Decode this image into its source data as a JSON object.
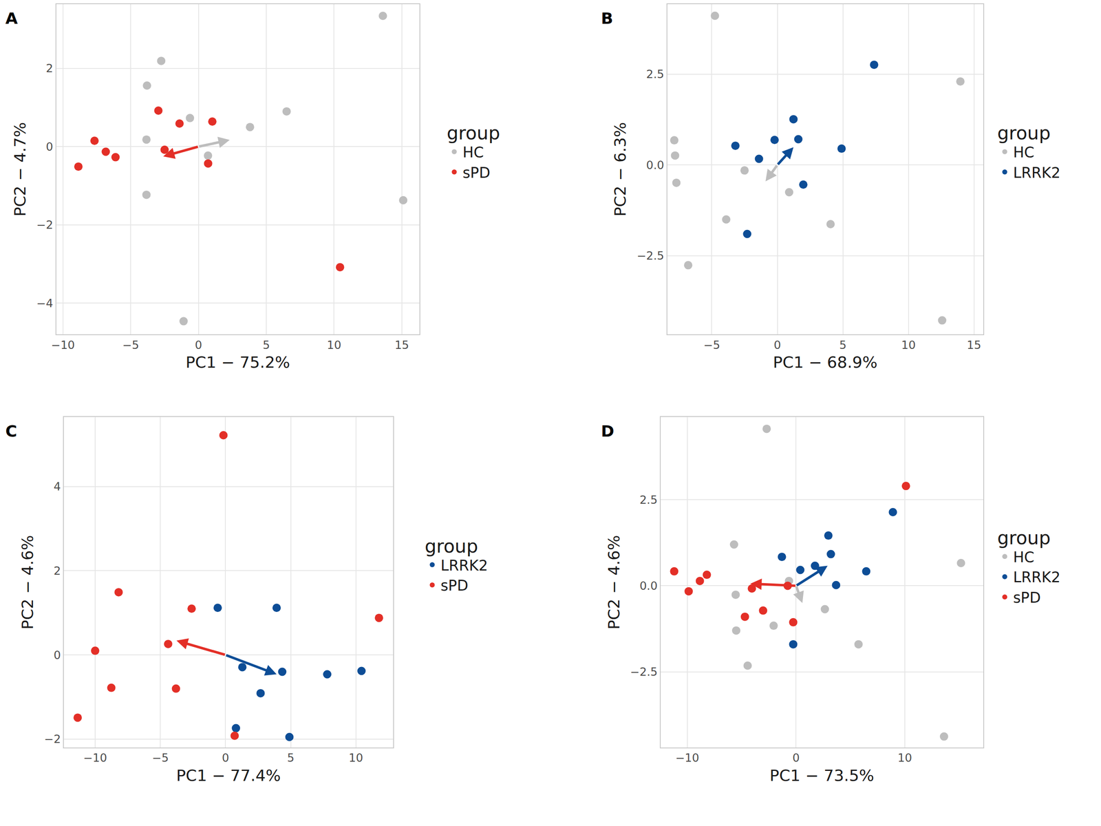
{
  "chart_data": [
    {
      "type": "scatter",
      "title": "A",
      "x_label": "PC1 − 75.2%",
      "y_label": "PC2 − 4.7%",
      "xlim": [
        -10.5,
        16.3
      ],
      "ylim": [
        -4.8,
        3.64
      ],
      "xticks": [
        -10,
        -5,
        0,
        5,
        10,
        15
      ],
      "yticks": [
        -4,
        -2,
        0,
        2
      ],
      "grid": true,
      "legend_title": "group",
      "series": [
        {
          "name": "HC",
          "color": "#bdbdbd",
          "x": [
            13.6,
            -2.75,
            -3.8,
            -0.63,
            6.5,
            3.8,
            -3.84,
            0.7,
            -3.84,
            15.1,
            -1.1
          ],
          "y": [
            3.34,
            2.19,
            1.56,
            0.73,
            0.9,
            0.5,
            0.18,
            -0.23,
            -1.23,
            -1.37,
            -4.46
          ]
        },
        {
          "name": "sPD",
          "color": "#e32f27",
          "x": [
            -2.96,
            -1.4,
            1.02,
            -7.67,
            -6.84,
            -6.12,
            -8.86,
            -2.5,
            0.71,
            10.44
          ],
          "y": [
            0.92,
            0.59,
            0.64,
            0.15,
            -0.13,
            -0.27,
            -0.51,
            -0.08,
            -0.43,
            -3.08
          ]
        }
      ],
      "arrows": [
        {
          "name": "HC",
          "x0": 0,
          "y0": 0,
          "x": 2.3,
          "y": 0.17
        },
        {
          "name": "sPD",
          "x0": 0,
          "y0": 0,
          "x": -2.6,
          "y": -0.25
        }
      ]
    },
    {
      "type": "scatter",
      "title": "B",
      "x_label": "PC1 − 68.9%",
      "y_label": "PC2 − 6.3%",
      "xlim": [
        -8.4,
        15.7
      ],
      "ylim": [
        -4.67,
        4.43
      ],
      "xticks": [
        -5,
        0,
        5,
        10,
        15
      ],
      "yticks": [
        {
          "value": -2.5,
          "label": "−2.5"
        },
        {
          "value": 0,
          "label": "0.0"
        },
        {
          "value": 2.5,
          "label": "2.5"
        }
      ],
      "grid": true,
      "legend_title": "group",
      "series": [
        {
          "name": "HC",
          "color": "#bdbdbd",
          "x": [
            -4.76,
            -7.86,
            -7.8,
            -7.7,
            -2.5,
            0.9,
            -3.9,
            -6.8,
            4.06,
            13.96,
            12.57
          ],
          "y": [
            4.11,
            0.68,
            0.26,
            -0.49,
            -0.15,
            -0.75,
            -1.5,
            -2.76,
            -1.63,
            2.3,
            -4.28
          ]
        },
        {
          "name": "LRRK2",
          "color": "#0d4d96",
          "x": [
            7.38,
            1.23,
            1.6,
            -0.21,
            -3.2,
            -1.4,
            4.9,
            1.98,
            -2.3
          ],
          "y": [
            2.76,
            1.26,
            0.71,
            0.69,
            0.53,
            0.17,
            0.45,
            -0.54,
            -1.9
          ]
        }
      ],
      "arrows": [
        {
          "name": "LRRK2",
          "x0": 0,
          "y0": 0,
          "x": 1.23,
          "y": 0.49
        },
        {
          "name": "HC",
          "x0": 0,
          "y0": 0,
          "x": -0.9,
          "y": -0.45
        }
      ]
    },
    {
      "type": "scatter",
      "title": "C",
      "x_label": "PC1 − 77.4%",
      "y_label": "PC2 − 4.6%",
      "xlim": [
        -12.4,
        12.85
      ],
      "ylim": [
        -2.2,
        5.65
      ],
      "xticks": [
        -10,
        -5,
        0,
        5,
        10
      ],
      "yticks": [
        -2,
        0,
        2,
        4
      ],
      "grid": true,
      "legend_title": "group",
      "series": [
        {
          "name": "LRRK2",
          "color": "#0d4d96",
          "x": [
            -0.6,
            3.92,
            1.29,
            2.69,
            4.35,
            7.8,
            10.43,
            0.8,
            4.9
          ],
          "y": [
            1.12,
            1.12,
            -0.29,
            -0.91,
            -0.4,
            -0.46,
            -0.38,
            -1.74,
            -1.95
          ]
        },
        {
          "name": "sPD",
          "color": "#e32f27",
          "x": [
            -0.16,
            -8.2,
            -10,
            -2.6,
            -4.4,
            -8.76,
            -3.8,
            -11.34,
            0.7,
            11.77
          ],
          "y": [
            5.22,
            1.49,
            0.1,
            1.1,
            0.26,
            -0.78,
            -0.8,
            -1.49,
            -1.92,
            0.88
          ]
        }
      ],
      "arrows": [
        {
          "name": "sPD",
          "x0": 0,
          "y0": 0,
          "x": -3.76,
          "y": 0.34
        },
        {
          "name": "LRRK2",
          "x0": 0,
          "y0": 0,
          "x": 3.92,
          "y": -0.46
        }
      ]
    },
    {
      "type": "scatter",
      "title": "D",
      "x_label": "PC1 − 73.5%",
      "y_label": "PC2 − 4.6%",
      "xlim": [
        -12.45,
        17.2
      ],
      "ylim": [
        -4.7,
        4.9
      ],
      "xticks": [
        -10,
        0,
        10
      ],
      "yticks": [
        {
          "value": -2.5,
          "label": "−2.5"
        },
        {
          "value": 0,
          "label": "0.0"
        },
        {
          "value": 2.5,
          "label": "2.5"
        }
      ],
      "grid": true,
      "legend_title": "group",
      "series": [
        {
          "name": "HC",
          "color": "#bdbdbd",
          "x": [
            -2.7,
            -5.7,
            -5.55,
            -0.65,
            -2.06,
            -5.5,
            -4.45,
            2.65,
            5.74,
            15.16,
            13.6
          ],
          "y": [
            4.56,
            1.2,
            -0.26,
            0.14,
            -1.16,
            -1.3,
            -2.32,
            -0.68,
            -1.7,
            0.66,
            -4.38
          ]
        },
        {
          "name": "LRRK2",
          "color": "#0d4d96",
          "x": [
            8.9,
            2.97,
            3.2,
            -1.3,
            0.39,
            1.74,
            6.45,
            3.68,
            -0.26
          ],
          "y": [
            2.14,
            1.46,
            0.92,
            0.84,
            0.46,
            0.58,
            0.42,
            0.02,
            -1.7
          ]
        },
        {
          "name": "sPD",
          "color": "#e32f27",
          "x": [
            10.1,
            -11.2,
            -8.2,
            -8.84,
            -9.87,
            -4.06,
            -3.03,
            -4.7,
            -0.26,
            -0.77
          ],
          "y": [
            2.9,
            0.42,
            0.32,
            0.14,
            -0.16,
            -0.08,
            -0.72,
            -0.9,
            -1.06,
            0.0
          ]
        }
      ],
      "arrows": [
        {
          "name": "sPD",
          "x0": 0,
          "y0": 0,
          "x": -4.2,
          "y": 0.06
        },
        {
          "name": "LRRK2",
          "x0": 0,
          "y0": 0,
          "x": 2.9,
          "y": 0.58
        },
        {
          "name": "HC",
          "x0": 0,
          "y0": 0,
          "x": 0.58,
          "y": -0.5
        }
      ]
    }
  ]
}
